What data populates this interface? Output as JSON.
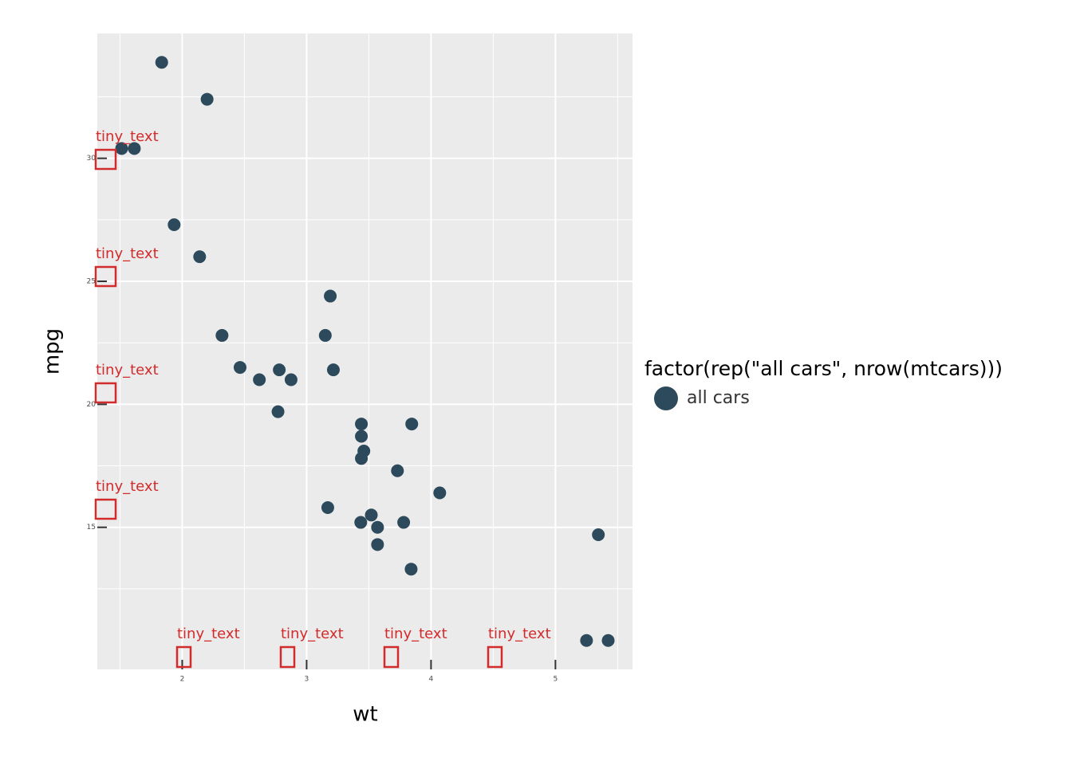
{
  "chart_data": {
    "type": "scatter",
    "x_label": "wt",
    "y_label": "mpg",
    "xlim": [
      1.31745,
      5.61955
    ],
    "ylim": [
      9.225,
      35.075
    ],
    "xticks": [
      2,
      3,
      4,
      5
    ],
    "yticks": [
      15,
      20,
      25,
      30
    ],
    "x_minor_breaks": [
      1.5,
      2.5,
      3.5,
      4.5,
      5.5
    ],
    "y_minor_breaks": [
      12.5,
      17.5,
      22.5,
      27.5,
      32.5
    ],
    "grid": true,
    "legend_title": "factor(rep(\"all cars\", nrow(mtcars)))",
    "legend_position": "right",
    "series": [
      {
        "name": "all cars",
        "color": "#2d4a5c",
        "x": [
          2.62,
          2.875,
          2.32,
          3.215,
          3.44,
          3.46,
          3.57,
          3.19,
          3.15,
          3.44,
          3.44,
          4.07,
          3.73,
          3.78,
          5.25,
          5.424,
          5.345,
          2.2,
          1.615,
          1.835,
          2.465,
          3.52,
          3.435,
          3.84,
          3.845,
          1.935,
          2.14,
          1.513,
          3.17,
          2.77,
          3.57,
          2.78
        ],
        "values": [
          21.0,
          21.0,
          22.8,
          21.4,
          18.7,
          18.1,
          14.3,
          24.4,
          22.8,
          19.2,
          17.8,
          16.4,
          17.3,
          15.2,
          10.4,
          10.4,
          14.7,
          32.4,
          30.4,
          33.9,
          21.5,
          15.5,
          15.2,
          13.3,
          19.2,
          27.3,
          26.0,
          30.4,
          15.8,
          19.7,
          15.0,
          21.4
        ]
      }
    ],
    "annotations": [
      "tiny_text",
      "tiny_text",
      "tiny_text",
      "tiny_text",
      "tiny_text",
      "tiny_text",
      "tiny_text",
      "tiny_text"
    ]
  }
}
